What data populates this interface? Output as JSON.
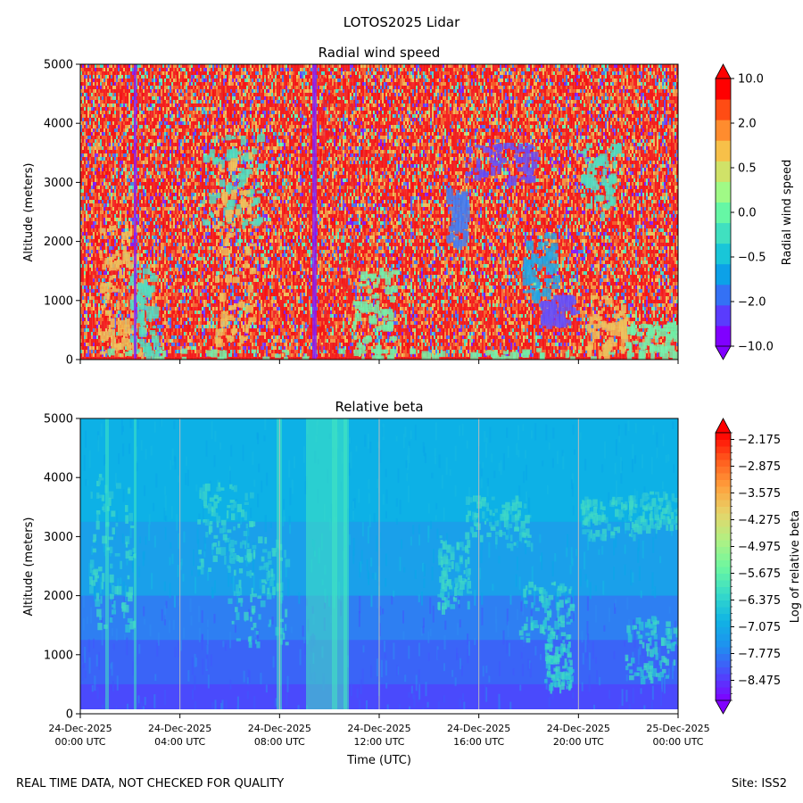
{
  "figure": {
    "title": "LOTOS2025 Lidar",
    "footer_left": "REAL TIME DATA, NOT CHECKED FOR QUALITY",
    "footer_right": "Site: ISS2"
  },
  "chart_data": [
    {
      "type": "heatmap",
      "title": "Radial wind speed",
      "xlabel": "",
      "ylabel": "Altitude (meters)",
      "ylim": [
        0,
        5000
      ],
      "yticks": [
        0,
        1000,
        2000,
        3000,
        4000,
        5000
      ],
      "colorbar": {
        "label": "Radial wind speed",
        "levels": [
          -10.0,
          -5.0,
          -2.0,
          -1.0,
          -0.5,
          -0.2,
          0.0,
          0.2,
          0.5,
          1.0,
          2.0,
          5.0,
          10.0
        ],
        "tick_values": [
          -10.0,
          -2.0,
          -0.5,
          0.0,
          0.5,
          2.0,
          10.0
        ],
        "tick_labels": [
          "−10.0",
          "−2.0",
          "−0.5",
          "0.0",
          "0.5",
          "2.0",
          "10.0"
        ],
        "colors": [
          "#8000ff",
          "#5a3cfd",
          "#3471f5",
          "#0ca1e8",
          "#19c6d8",
          "#40e0c0",
          "#66f7a5",
          "#a0fa86",
          "#d0e268",
          "#f7c049",
          "#ff8c2e",
          "#ff4c14",
          "#ff0000"
        ]
      }
    },
    {
      "type": "heatmap",
      "title": "Relative beta",
      "xlabel": "Time (UTC)",
      "ylabel": "Altitude (meters)",
      "ylim": [
        0,
        5000
      ],
      "yticks": [
        0,
        1000,
        2000,
        3000,
        4000,
        5000
      ],
      "x_tick_labels": [
        [
          "24-Dec-2025",
          "00:00 UTC"
        ],
        [
          "24-Dec-2025",
          "04:00 UTC"
        ],
        [
          "24-Dec-2025",
          "08:00 UTC"
        ],
        [
          "24-Dec-2025",
          "12:00 UTC"
        ],
        [
          "24-Dec-2025",
          "16:00 UTC"
        ],
        [
          "24-Dec-2025",
          "20:00 UTC"
        ],
        [
          "25-Dec-2025",
          "00:00 UTC"
        ]
      ],
      "colorbar": {
        "label": "Log of relative beta",
        "range": [
          -9.0,
          -2.0
        ],
        "tick_values": [
          -2.175,
          -2.875,
          -3.575,
          -4.275,
          -4.975,
          -5.675,
          -6.375,
          -7.075,
          -7.775,
          -8.475
        ],
        "tick_labels": [
          "−2.175",
          "−2.875",
          "−3.575",
          "−4.275",
          "−4.975",
          "−5.675",
          "−6.375",
          "−7.075",
          "−7.775",
          "−8.475"
        ]
      }
    }
  ]
}
